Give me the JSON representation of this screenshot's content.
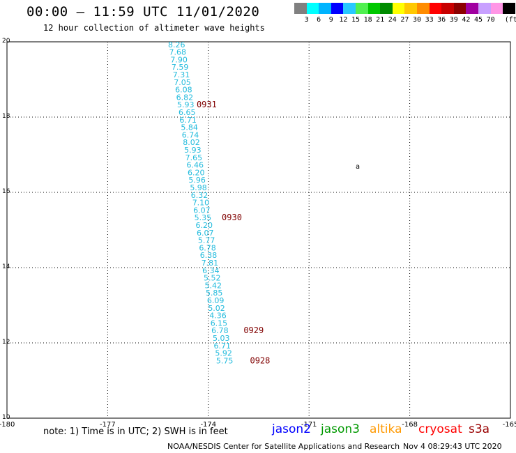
{
  "header": {
    "title": "00:00 – 11:59 UTC 11/01/2020",
    "subtitle": "12 hour collection of altimeter wave heights"
  },
  "legend": {
    "unit": "(ft)",
    "items": [
      {
        "label": "",
        "color": "#808080"
      },
      {
        "label": "3",
        "color": "#00ffff"
      },
      {
        "label": "6",
        "color": "#00b4ff"
      },
      {
        "label": "9",
        "color": "#0000ff"
      },
      {
        "label": "12",
        "color": "#28c8ff"
      },
      {
        "label": "15",
        "color": "#50f050"
      },
      {
        "label": "18",
        "color": "#00c800"
      },
      {
        "label": "21",
        "color": "#008c00"
      },
      {
        "label": "24",
        "color": "#ffff00"
      },
      {
        "label": "27",
        "color": "#ffc800"
      },
      {
        "label": "30",
        "color": "#ff8c00"
      },
      {
        "label": "33",
        "color": "#ff0000"
      },
      {
        "label": "36",
        "color": "#c80000"
      },
      {
        "label": "39",
        "color": "#8c0000"
      },
      {
        "label": "42",
        "color": "#a000a0"
      },
      {
        "label": "45",
        "color": "#c8a0ff"
      },
      {
        "label": "70",
        "color": "#ff96e6"
      },
      {
        "label": "",
        "color": "#000000"
      }
    ]
  },
  "map": {
    "lon_range": [
      -180,
      -165
    ],
    "lat_range": [
      10,
      20
    ],
    "x_ticks": [
      "-180",
      "-177",
      "-174",
      "-171",
      "-168",
      "-165"
    ],
    "y_ticks": [
      "20",
      "18",
      "16",
      "14",
      "12",
      "10"
    ],
    "island_label": "a",
    "swh_color": "#22bbdd",
    "time_color": "#800000",
    "observations": [
      {
        "lat": 19.93,
        "lon": -175.2,
        "swh": "8.26"
      },
      {
        "lat": 19.73,
        "lon": -175.17,
        "swh": "7.68"
      },
      {
        "lat": 19.53,
        "lon": -175.13,
        "swh": "7.90"
      },
      {
        "lat": 19.33,
        "lon": -175.1,
        "swh": "7.59"
      },
      {
        "lat": 19.13,
        "lon": -175.06,
        "swh": "7.31"
      },
      {
        "lat": 18.93,
        "lon": -175.03,
        "swh": "7.05"
      },
      {
        "lat": 18.73,
        "lon": -174.99,
        "swh": "6.08"
      },
      {
        "lat": 18.53,
        "lon": -174.96,
        "swh": "6.82"
      },
      {
        "lat": 18.33,
        "lon": -174.93,
        "swh": "5.93"
      },
      {
        "lat": 18.13,
        "lon": -174.89,
        "swh": "6.65"
      },
      {
        "lat": 17.93,
        "lon": -174.86,
        "swh": "6.71"
      },
      {
        "lat": 17.73,
        "lon": -174.82,
        "swh": "5.84"
      },
      {
        "lat": 17.53,
        "lon": -174.79,
        "swh": "6.74"
      },
      {
        "lat": 17.33,
        "lon": -174.76,
        "swh": "8.02"
      },
      {
        "lat": 17.13,
        "lon": -174.72,
        "swh": "5.93"
      },
      {
        "lat": 16.93,
        "lon": -174.69,
        "swh": "7.65"
      },
      {
        "lat": 16.73,
        "lon": -174.65,
        "swh": "6.46"
      },
      {
        "lat": 16.53,
        "lon": -174.62,
        "swh": "6.20"
      },
      {
        "lat": 16.33,
        "lon": -174.59,
        "swh": "5.96"
      },
      {
        "lat": 16.13,
        "lon": -174.55,
        "swh": "5.98"
      },
      {
        "lat": 15.93,
        "lon": -174.52,
        "swh": "6.32"
      },
      {
        "lat": 15.73,
        "lon": -174.48,
        "swh": "7.10"
      },
      {
        "lat": 15.53,
        "lon": -174.45,
        "swh": "6.07"
      },
      {
        "lat": 15.33,
        "lon": -174.42,
        "swh": "5.35"
      },
      {
        "lat": 15.13,
        "lon": -174.38,
        "swh": "6.20"
      },
      {
        "lat": 14.93,
        "lon": -174.35,
        "swh": "6.07"
      },
      {
        "lat": 14.73,
        "lon": -174.31,
        "swh": "5.77"
      },
      {
        "lat": 14.53,
        "lon": -174.28,
        "swh": "6.78"
      },
      {
        "lat": 14.33,
        "lon": -174.25,
        "swh": "6.38"
      },
      {
        "lat": 14.13,
        "lon": -174.21,
        "swh": "7.81"
      },
      {
        "lat": 13.93,
        "lon": -174.18,
        "swh": "6.34"
      },
      {
        "lat": 13.73,
        "lon": -174.14,
        "swh": "5.52"
      },
      {
        "lat": 13.53,
        "lon": -174.11,
        "swh": "5.42"
      },
      {
        "lat": 13.33,
        "lon": -174.08,
        "swh": "5.85"
      },
      {
        "lat": 13.13,
        "lon": -174.04,
        "swh": "6.09"
      },
      {
        "lat": 12.93,
        "lon": -174.01,
        "swh": "5.02"
      },
      {
        "lat": 12.73,
        "lon": -173.97,
        "swh": "4.36"
      },
      {
        "lat": 12.53,
        "lon": -173.94,
        "swh": "6.15"
      },
      {
        "lat": 12.33,
        "lon": -173.91,
        "swh": "6.78"
      },
      {
        "lat": 12.13,
        "lon": -173.87,
        "swh": "5.03"
      },
      {
        "lat": 11.93,
        "lon": -173.84,
        "swh": "6.71"
      },
      {
        "lat": 11.73,
        "lon": -173.8,
        "swh": "5.92"
      },
      {
        "lat": 11.53,
        "lon": -173.77,
        "swh": "5.75"
      }
    ],
    "time_labels": [
      {
        "lat": 18.33,
        "lon": -174.35,
        "text": "0931"
      },
      {
        "lat": 15.33,
        "lon": -173.6,
        "text": "0930"
      },
      {
        "lat": 12.33,
        "lon": -172.95,
        "text": "0929"
      },
      {
        "lat": 11.53,
        "lon": -172.76,
        "text": "0928"
      }
    ]
  },
  "note": "note: 1) Time is in UTC; 2) SWH is in feet",
  "satellites": [
    {
      "name": "jason2",
      "color": "#0000ff"
    },
    {
      "name": "jason3",
      "color": "#009900"
    },
    {
      "name": "altika",
      "color": "#ff9900"
    },
    {
      "name": "cryosat",
      "color": "#ff0000"
    },
    {
      "name": "s3a",
      "color": "#990000"
    }
  ],
  "credit": {
    "org": "NOAA/NESDIS Center for Satellite Applications and Research",
    "timestamp": "Nov  4 08:29:43 UTC 2020"
  }
}
